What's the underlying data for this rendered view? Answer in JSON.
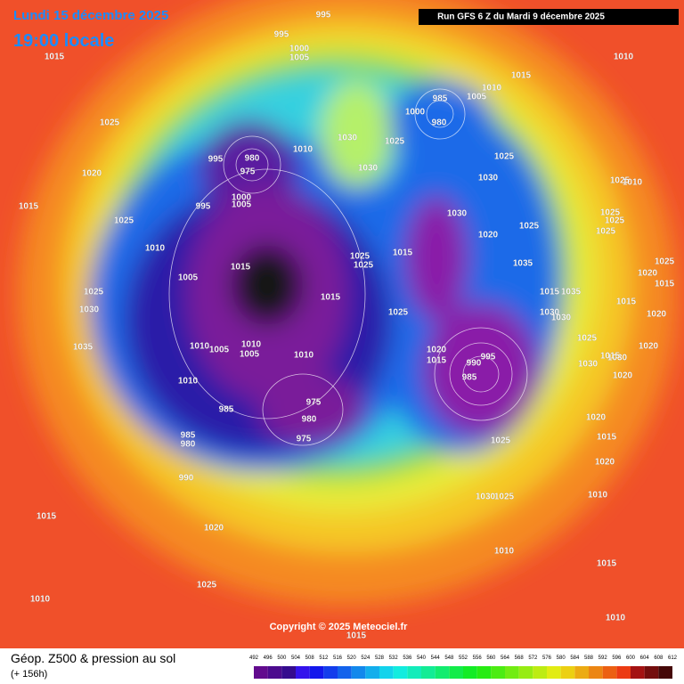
{
  "header": {
    "date": "Lundi 15 décembre 2025",
    "time": "19:00 locale",
    "run": "Run GFS 6 Z du Mardi 9 décembre 2025"
  },
  "pressure_labels": [
    "995",
    "995",
    "1000",
    "1005",
    "1015",
    "1025",
    "1020",
    "1015",
    "1025",
    "1010",
    "1005",
    "1025",
    "1030",
    "1035",
    "980",
    "995",
    "975",
    "1010",
    "995",
    "1000",
    "1005",
    "1030",
    "1025",
    "1030",
    "985",
    "1000",
    "980",
    "1005",
    "1010",
    "1015",
    "1010",
    "1025",
    "1030",
    "1030",
    "1020",
    "1025",
    "1015",
    "1015",
    "1025",
    "1025",
    "1015",
    "1025",
    "1010",
    "1005",
    "1010",
    "1005",
    "1010",
    "1010",
    "985",
    "975",
    "980",
    "975",
    "985",
    "980",
    "990",
    "1020",
    "1015",
    "995",
    "990",
    "985",
    "1025",
    "1030",
    "1025",
    "1015",
    "1020",
    "1025",
    "1010",
    "1010",
    "1015",
    "1010",
    "1010",
    "1020",
    "1015",
    "1020",
    "1020",
    "1030",
    "1025",
    "1030",
    "1020",
    "1020",
    "1015",
    "1015",
    "1035",
    "1030",
    "1030",
    "1035",
    "1025",
    "1025",
    "1025",
    "1025",
    "1010",
    "1025",
    "1020",
    "1015",
    "1015",
    "1015"
  ],
  "footer": {
    "title": "Géop. Z500 & pression au sol",
    "lead": "(+ 156h)",
    "copyright": "Copyright © 2025 Meteociel.fr"
  },
  "scale": {
    "ticks": [
      492,
      496,
      500,
      504,
      508,
      512,
      516,
      520,
      524,
      528,
      532,
      536,
      540,
      544,
      548,
      552,
      556,
      560,
      564,
      568,
      572,
      576,
      580,
      584,
      588,
      592,
      596,
      600,
      604,
      608,
      612
    ]
  }
}
